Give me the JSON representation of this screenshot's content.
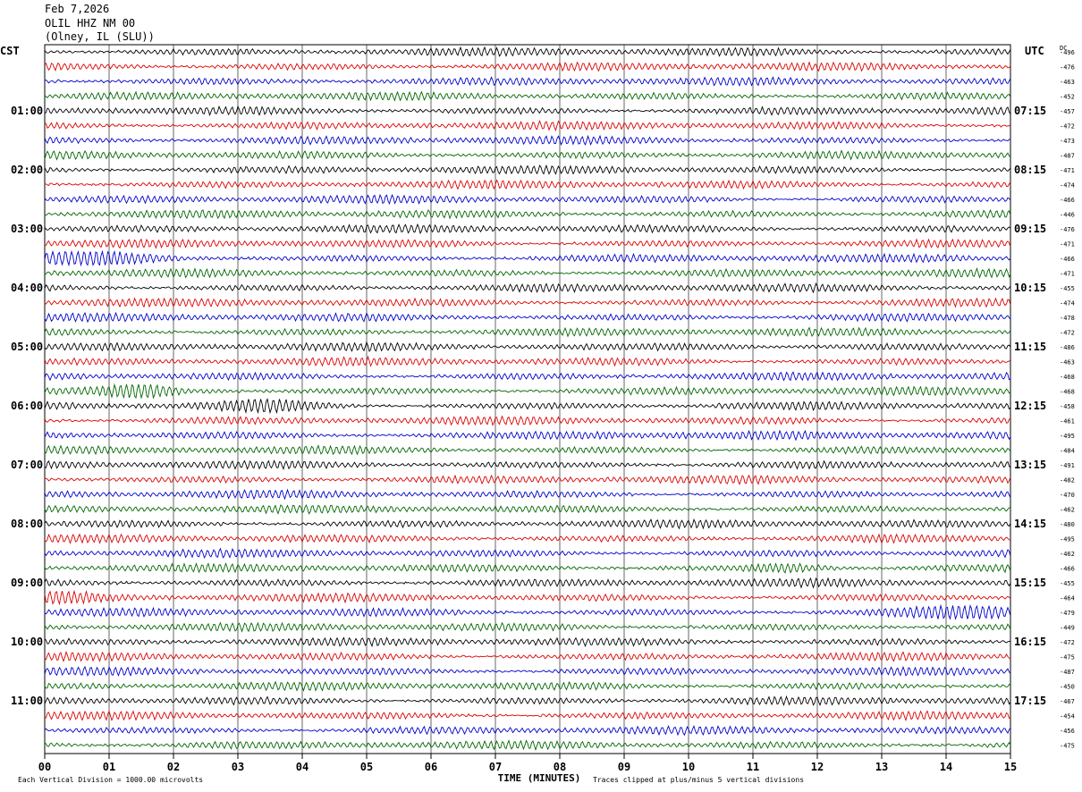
{
  "header": {
    "date": "Feb 7,2026",
    "station": "OLIL HHZ NM 00",
    "location": "(Olney, IL (SLU))"
  },
  "labels": {
    "left_tz": "CST",
    "right_tz": "UTC",
    "dc": "DC",
    "xlabel": "TIME (MINUTES)",
    "scale_note": "Each Vertical Division = 1000.00 microvolts",
    "clip_note": "Traces clipped at plus/minus 5 vertical divisions"
  },
  "colors": {
    "trace_cycle": [
      "#000000",
      "#dd0000",
      "#0000cc",
      "#006600"
    ],
    "grid": "#000000"
  },
  "chart_data": {
    "type": "line",
    "title": "",
    "xlabel": "TIME (MINUTES)",
    "x_ticks": [
      "00",
      "01",
      "02",
      "03",
      "04",
      "05",
      "06",
      "07",
      "08",
      "09",
      "10",
      "11",
      "12",
      "13",
      "14",
      "15"
    ],
    "xlim": [
      0,
      15
    ],
    "rows_per_hour": 4,
    "minutes_per_row": 15,
    "left_hour_labels": [
      "01:00",
      "02:00",
      "03:00",
      "04:00",
      "05:00",
      "06:00",
      "07:00",
      "08:00",
      "09:00",
      "10:00",
      "11:00"
    ],
    "right_hour_labels": [
      "07:15",
      "08:15",
      "09:15",
      "10:15",
      "11:15",
      "12:15",
      "13:15",
      "14:15",
      "15:15",
      "16:15",
      "17:15"
    ],
    "dc_offsets": [
      -496,
      -476,
      -463,
      -452,
      -457,
      -472,
      -473,
      -487,
      -471,
      -474,
      -466,
      -446,
      -476,
      -471,
      -466,
      -471,
      -455,
      -474,
      -478,
      -472,
      -486,
      -463,
      -468,
      -468,
      -458,
      -461,
      -495,
      -484,
      -491,
      -482,
      -470,
      -462,
      -480,
      -495,
      -462,
      -466,
      -455,
      -464,
      -479,
      -449,
      -472,
      -475,
      -487,
      -450,
      -467,
      -454,
      -456,
      -475
    ],
    "series_note": "48 seismogram traces, one per 15-minute row, cycling black/red/blue/green"
  }
}
